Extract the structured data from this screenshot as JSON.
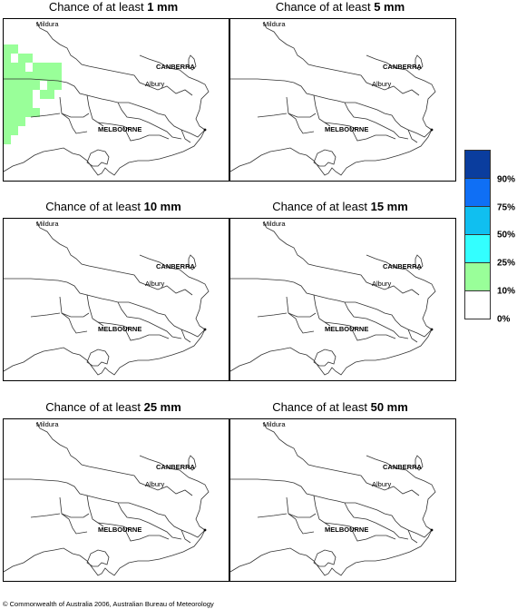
{
  "panels": [
    {
      "prefix": "Chance of at least ",
      "amount": "1 mm",
      "cells": [
        [
          0,
          0
        ],
        [
          1,
          0
        ],
        [
          0,
          1
        ],
        [
          2,
          1
        ],
        [
          3,
          1
        ],
        [
          0,
          2
        ],
        [
          1,
          2
        ],
        [
          2,
          2
        ],
        [
          4,
          2
        ],
        [
          5,
          2
        ],
        [
          6,
          2
        ],
        [
          7,
          2
        ],
        [
          0,
          3
        ],
        [
          1,
          3
        ],
        [
          2,
          3
        ],
        [
          3,
          3
        ],
        [
          4,
          3
        ],
        [
          5,
          3
        ],
        [
          6,
          3
        ],
        [
          7,
          3
        ],
        [
          0,
          4
        ],
        [
          1,
          4
        ],
        [
          2,
          4
        ],
        [
          3,
          4
        ],
        [
          4,
          4
        ],
        [
          6,
          4
        ],
        [
          7,
          4
        ],
        [
          0,
          5
        ],
        [
          1,
          5
        ],
        [
          2,
          5
        ],
        [
          3,
          5
        ],
        [
          5,
          5
        ],
        [
          6,
          5
        ],
        [
          0,
          6
        ],
        [
          1,
          6
        ],
        [
          2,
          6
        ],
        [
          3,
          6
        ],
        [
          0,
          7
        ],
        [
          1,
          7
        ],
        [
          2,
          7
        ],
        [
          3,
          7
        ],
        [
          4,
          7
        ],
        [
          0,
          8
        ],
        [
          1,
          8
        ],
        [
          2,
          8
        ],
        [
          0,
          9
        ],
        [
          1,
          9
        ],
        [
          0,
          10
        ]
      ]
    },
    {
      "prefix": "Chance of at least ",
      "amount": "5 mm",
      "cells": []
    },
    {
      "prefix": "Chance of at least ",
      "amount": "10 mm",
      "cells": []
    },
    {
      "prefix": "Chance of at least ",
      "amount": "15 mm",
      "cells": []
    },
    {
      "prefix": "Chance of at least ",
      "amount": "25 mm",
      "cells": []
    },
    {
      "prefix": "Chance of at least ",
      "amount": "50 mm",
      "cells": []
    }
  ],
  "places": {
    "mildura": "Mildura",
    "canberra": "CANBERRA",
    "albury": "Albury",
    "melbourne": "MELBOURNE"
  },
  "legend": {
    "colors": [
      "#0a3d9e",
      "#0f6ff5",
      "#10bff0",
      "#33ffff",
      "#99ff99",
      "#ffffff"
    ],
    "labels": [
      "90%",
      "75%",
      "50%",
      "25%",
      "10%",
      "0%"
    ]
  },
  "shade_color": "#99ff99",
  "footer": "© Commonwealth of Australia 2006, Australian Bureau of Meteorology"
}
